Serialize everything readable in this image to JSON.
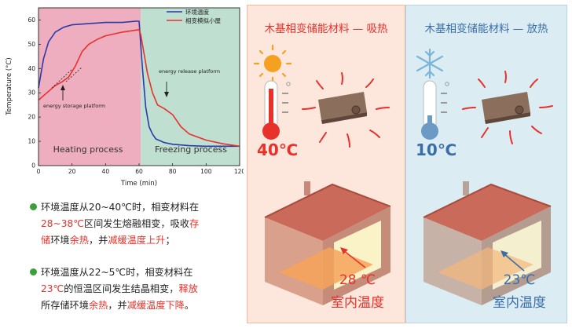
{
  "chart_data": {
    "type": "line",
    "xlabel": "Time (min)",
    "ylabel": "Temperature (°C)",
    "xlim": [
      0,
      120
    ],
    "ylim": [
      0,
      65
    ],
    "xticks": [
      0,
      20,
      40,
      60,
      80,
      100,
      120
    ],
    "yticks": [
      0,
      10,
      20,
      30,
      40,
      50,
      60
    ],
    "series": [
      {
        "name": "环境温度",
        "color": "#2b3aa8",
        "x": [
          0,
          3,
          6,
          10,
          15,
          20,
          30,
          40,
          50,
          58,
          60,
          62,
          64,
          66,
          68,
          70,
          75,
          80,
          90,
          100,
          110,
          120
        ],
        "y": [
          32,
          44,
          51,
          55,
          57,
          58,
          58.5,
          59,
          59,
          59.5,
          59.5,
          40,
          24,
          16,
          13,
          11,
          9.5,
          8.8,
          8.2,
          8,
          8,
          8
        ]
      },
      {
        "name": "相变模拟小屋",
        "color": "#e8312a",
        "x": [
          0,
          5,
          10,
          14,
          18,
          22,
          26,
          30,
          35,
          40,
          50,
          60,
          61,
          63,
          65,
          68,
          71,
          75,
          80,
          85,
          90,
          100,
          110,
          120
        ],
        "y": [
          27,
          30,
          33,
          34.5,
          36.5,
          41,
          47,
          50,
          52,
          53.5,
          55,
          56,
          54,
          46,
          38,
          30,
          25,
          23.5,
          21,
          16,
          13,
          10.5,
          9,
          8
        ]
      }
    ],
    "regions": [
      {
        "label": "Heating process",
        "from": 0,
        "to": 61,
        "color": "#eeaebf"
      },
      {
        "label": "Freezing process",
        "from": 61,
        "to": 120,
        "color": "#bfdfd0"
      }
    ],
    "annotations": [
      {
        "text": "energy storage platform",
        "x": 14,
        "y": 35
      },
      {
        "text": "energy release platform",
        "x": 75,
        "y": 24
      }
    ],
    "legend_position": "top-right"
  },
  "bullets": {
    "b1": {
      "l1": "环境温度从20~40℃时，相变材料在",
      "l2a": "28~38℃",
      "l2b": "区间发生熔融相变，吸收",
      "l2c": "存",
      "l3a": "储",
      "l3b": "环境",
      "l3c": "余热",
      "l3d": "，并",
      "l3e": "减缓温度上升",
      "l3f": "；"
    },
    "b2": {
      "l1": "环境温度从22~5℃时，相变材料在",
      "l2a": "23℃",
      "l2b": "的恒温区间发生结晶相变，",
      "l2c": "释放",
      "l3a": "所存储环境",
      "l3b": "余热",
      "l3c": "，并",
      "l3d": "减缓温度下降",
      "l3e": "。"
    }
  },
  "panels": {
    "left": {
      "title": "木基相变储能材料 — 吸热",
      "temp": "40℃",
      "room_temp": "28 ℃",
      "room_label": "室内温度",
      "bg": "#fde6dc",
      "accent": "#e8312a"
    },
    "right": {
      "title": "木基相变储能材料 — 放热",
      "temp": "10℃",
      "room_temp": "23℃",
      "room_label": "室内温度",
      "bg": "#dcecf3",
      "accent": "#3a6ea8"
    }
  }
}
